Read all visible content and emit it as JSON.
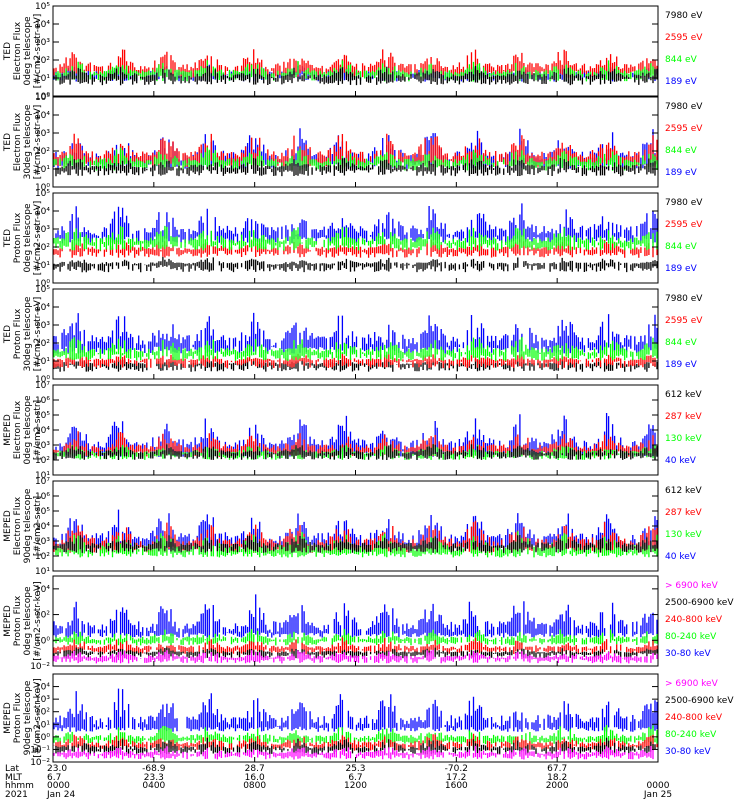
{
  "colors": {
    "black": "#000000",
    "red": "#ff0000",
    "green": "#00ff00",
    "blue": "#0000ff",
    "magenta": "#ff00ff"
  },
  "chart_data": [
    {
      "type": "line",
      "ylabel": [
        "TED",
        "Electron Flux",
        "0deg telescope",
        "[#/cm2-s-str-eV]"
      ],
      "yscale": "log",
      "ylim_exp": [
        0,
        5
      ],
      "yticks": [
        "10⁰",
        "10¹",
        "10²",
        "10³",
        "10⁴",
        "10⁵"
      ],
      "series": [
        {
          "name": "7980 eV",
          "color": "black",
          "base": 1.0,
          "spread": 0.6
        },
        {
          "name": "2595 eV",
          "color": "red",
          "base": 1.4,
          "spread": 1.2
        },
        {
          "name": "844 eV",
          "color": "green",
          "base": 1.2,
          "spread": 0.7
        },
        {
          "name": "189 eV",
          "color": "blue",
          "base": 1.2,
          "spread": 0.5
        }
      ],
      "draw_order": [
        3,
        1,
        2,
        0
      ]
    },
    {
      "type": "line",
      "ylabel": [
        "TED",
        "Electron Flux",
        "30deg telescope",
        "[#/cm2-s-str-eV]"
      ],
      "yscale": "log",
      "ylim_exp": [
        0,
        5
      ],
      "yticks": [
        "10⁰",
        "10¹",
        "10²",
        "10³",
        "10⁴",
        "10⁵"
      ],
      "series": [
        {
          "name": "7980 eV",
          "color": "black",
          "base": 1.0,
          "spread": 0.6
        },
        {
          "name": "2595 eV",
          "color": "red",
          "base": 1.5,
          "spread": 1.4
        },
        {
          "name": "844 eV",
          "color": "green",
          "base": 1.3,
          "spread": 0.8
        },
        {
          "name": "189 eV",
          "color": "blue",
          "base": 1.4,
          "spread": 1.6
        }
      ],
      "draw_order": [
        3,
        1,
        2,
        0
      ]
    },
    {
      "type": "line",
      "ylabel": [
        "TED",
        "Proton Flux",
        "0deg telescope",
        "[#/cm2-s-str-eV]"
      ],
      "yscale": "log",
      "ylim_exp": [
        0,
        5
      ],
      "yticks": [
        "10⁰",
        "10¹",
        "10²",
        "10³",
        "10⁴",
        "10⁵"
      ],
      "series": [
        {
          "name": "7980 eV",
          "color": "black",
          "base": 1.0,
          "spread": 0.4
        },
        {
          "name": "2595 eV",
          "color": "red",
          "base": 1.8,
          "spread": 0.6
        },
        {
          "name": "844 eV",
          "color": "green",
          "base": 2.2,
          "spread": 0.9
        },
        {
          "name": "189 eV",
          "color": "blue",
          "base": 2.6,
          "spread": 1.6
        }
      ],
      "draw_order": [
        0,
        3,
        1,
        2
      ]
    },
    {
      "type": "line",
      "ylabel": [
        "TED",
        "Proton Flux",
        "30deg telescope",
        "[#/cm2-s-str-eV]"
      ],
      "yscale": "log",
      "ylim_exp": [
        0,
        5
      ],
      "yticks": [
        "10⁰",
        "10¹",
        "10²",
        "10³",
        "10⁴",
        "10⁵"
      ],
      "series": [
        {
          "name": "7980 eV",
          "color": "black",
          "base": 0.8,
          "spread": 0.3
        },
        {
          "name": "2595 eV",
          "color": "red",
          "base": 1.0,
          "spread": 0.4
        },
        {
          "name": "844 eV",
          "color": "green",
          "base": 1.4,
          "spread": 0.9
        },
        {
          "name": "189 eV",
          "color": "blue",
          "base": 1.8,
          "spread": 1.8
        }
      ],
      "draw_order": [
        0,
        1,
        3,
        2
      ]
    },
    {
      "type": "line",
      "ylabel": [
        "MEPED",
        "Electron Flux",
        "0deg telescope",
        "[#/cm2-s-str]"
      ],
      "yscale": "log",
      "ylim_exp": [
        1,
        7
      ],
      "yticks": [
        "10¹",
        "10²",
        "10³",
        "10⁴",
        "10⁵",
        "10⁶",
        "10⁷"
      ],
      "series": [
        {
          "name": "612 keV",
          "color": "black",
          "base": 2.4,
          "spread": 0.6
        },
        {
          "name": "287 keV",
          "color": "red",
          "base": 2.6,
          "spread": 1.2
        },
        {
          "name": "130 keV",
          "color": "green",
          "base": 2.4,
          "spread": 0.6
        },
        {
          "name": "40 keV",
          "color": "blue",
          "base": 2.6,
          "spread": 2.2
        }
      ],
      "draw_order": [
        3,
        1,
        2,
        0
      ]
    },
    {
      "type": "line",
      "ylabel": [
        "MEPED",
        "Electron Flux",
        "90deg telescope",
        "[#/cm2-s-str]"
      ],
      "yscale": "log",
      "ylim_exp": [
        1,
        7
      ],
      "yticks": [
        "10¹",
        "10²",
        "10³",
        "10⁴",
        "10⁵",
        "10⁶",
        "10⁷"
      ],
      "series": [
        {
          "name": "612 keV",
          "color": "black",
          "base": 2.6,
          "spread": 0.8
        },
        {
          "name": "287 keV",
          "color": "red",
          "base": 2.6,
          "spread": 1.6
        },
        {
          "name": "130 keV",
          "color": "green",
          "base": 2.3,
          "spread": 1.2
        },
        {
          "name": "40 keV",
          "color": "blue",
          "base": 2.8,
          "spread": 2.0
        }
      ],
      "draw_order": [
        3,
        1,
        2,
        0
      ]
    },
    {
      "type": "line",
      "ylabel": [
        "MEPED",
        "Proton Flux",
        "0deg telescope",
        "[#/cm2-s-str-keV]"
      ],
      "yscale": "log",
      "ylim_exp": [
        -2,
        5
      ],
      "yticks": [
        "10⁻²",
        "10⁰",
        "10²",
        "10⁴"
      ],
      "ytick_exps": [
        -2,
        0,
        2,
        4
      ],
      "series": [
        {
          "name": "> 6900 keV",
          "color": "magenta",
          "base": -1.4,
          "spread": 0.6
        },
        {
          "name": "2500-6900 keV",
          "color": "black",
          "base": -1.0,
          "spread": 0.4
        },
        {
          "name": "240-800 keV",
          "color": "red",
          "base": -0.7,
          "spread": 0.8
        },
        {
          "name": "80-240 keV",
          "color": "green",
          "base": 0.0,
          "spread": 0.8
        },
        {
          "name": "30-80 keV",
          "color": "blue",
          "base": 0.6,
          "spread": 2.5
        }
      ],
      "draw_order": [
        4,
        3,
        2,
        1,
        0
      ]
    },
    {
      "type": "line",
      "ylabel": [
        "MEPED",
        "Proton Flux",
        "90deg telescope",
        "[#/cm2-s-str-keV]"
      ],
      "yscale": "log",
      "ylim_exp": [
        -2,
        5
      ],
      "yticks": [
        "10⁻²",
        "10⁻¹",
        "10⁰",
        "10¹",
        "10²",
        "10³",
        "10⁴"
      ],
      "ytick_exps": [
        -2,
        -1,
        0,
        1,
        2,
        3,
        4
      ],
      "series": [
        {
          "name": "> 6900 keV",
          "color": "magenta",
          "base": -1.4,
          "spread": 0.6
        },
        {
          "name": "2500-6900 keV",
          "color": "black",
          "base": -1.0,
          "spread": 0.8
        },
        {
          "name": "240-800 keV",
          "color": "red",
          "base": -0.7,
          "spread": 0.9
        },
        {
          "name": "80-240 keV",
          "color": "green",
          "base": -0.2,
          "spread": 1.0
        },
        {
          "name": "30-80 keV",
          "color": "blue",
          "base": 0.8,
          "spread": 2.6
        }
      ],
      "draw_order": [
        4,
        3,
        2,
        1,
        0
      ]
    }
  ],
  "footer": {
    "row_labels": [
      "Lat",
      "MLT",
      "hhmm",
      "2021"
    ],
    "columns": [
      {
        "lat": "23.0",
        "mlt": "6.7",
        "hhmm": "0000",
        "date": "Jan 24"
      },
      {
        "lat": "-68.9",
        "mlt": "23.3",
        "hhmm": "0400",
        "date": ""
      },
      {
        "lat": "28.7",
        "mlt": "16.0",
        "hhmm": "0800",
        "date": ""
      },
      {
        "lat": "25.3",
        "mlt": "6.7",
        "hhmm": "1200",
        "date": ""
      },
      {
        "lat": "-70.2",
        "mlt": "17.2",
        "hhmm": "1600",
        "date": ""
      },
      {
        "lat": "67.7",
        "mlt": "18.2",
        "hhmm": "2000",
        "date": ""
      },
      {
        "lat": "",
        "mlt": "",
        "hhmm": "0000",
        "date": "Jan 25"
      }
    ]
  }
}
